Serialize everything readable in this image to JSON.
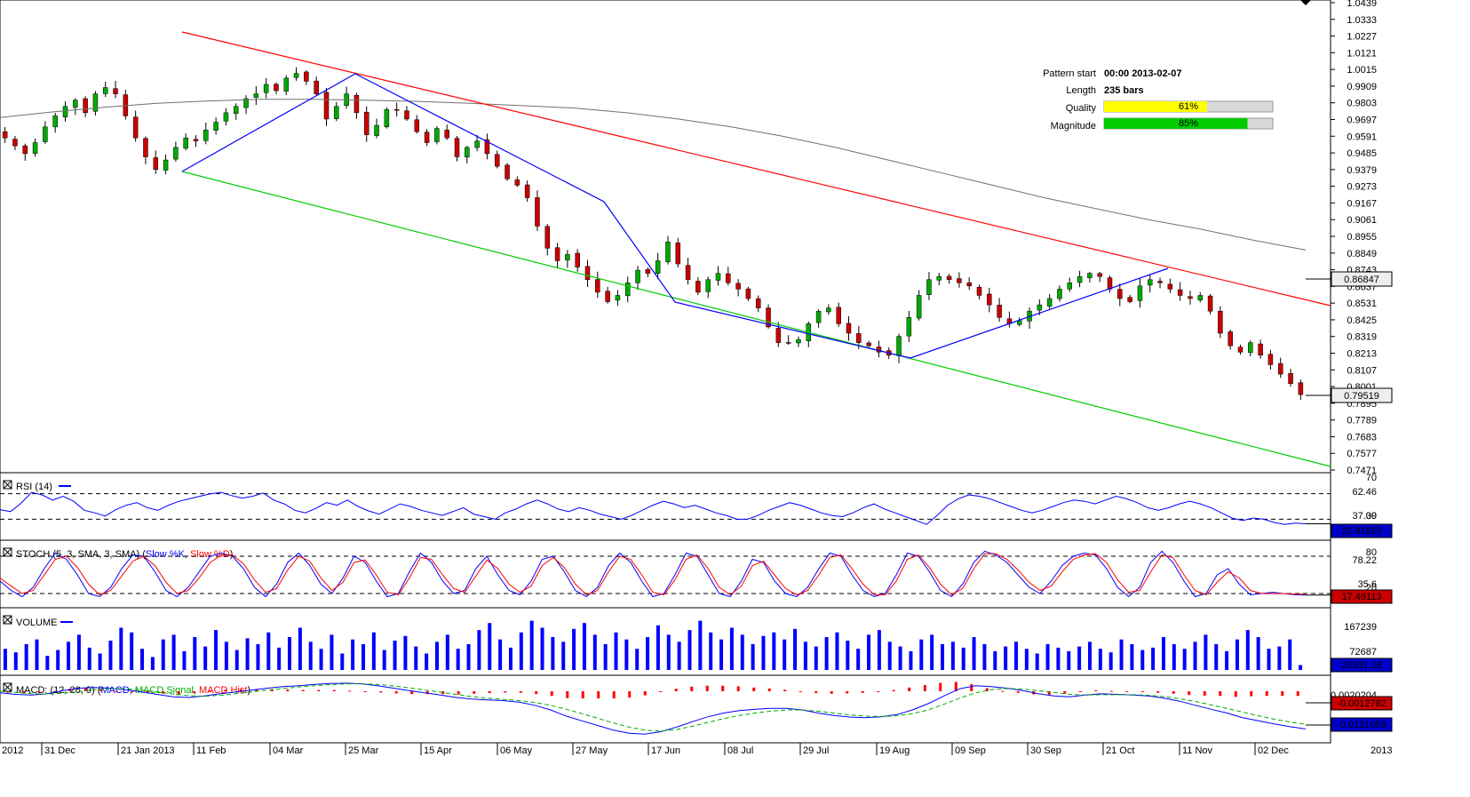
{
  "colors": {
    "bull_candle": "#00aa00",
    "bear_candle": "#cc0000",
    "candle_wick": "#000000",
    "sma_line": "#707070",
    "resistance": "#ff0000",
    "support": "#00cc00",
    "zigzag": "#0000ff",
    "rsi": "#0000ff",
    "stoch_k": "#0000ff",
    "stoch_d": "#ff0000",
    "volume": "#0000ff",
    "macd": "#0000ff",
    "macd_signal": "#00aa00",
    "macd_hist": "#ff0000",
    "quality_fill": "#ffff00",
    "magnitude_fill": "#00cc00"
  },
  "pattern_info": {
    "start_label": "Pattern start",
    "start_value": "00:00 2013-02-07",
    "length_label": "Length",
    "length_value": "235 bars",
    "quality_label": "Quality",
    "quality_value": "61%",
    "quality_pct": 61,
    "magnitude_label": "Magnitude",
    "magnitude_value": "85%",
    "magnitude_pct": 85
  },
  "chart_data": [
    {
      "type": "candlestick",
      "title": "",
      "ylim": [
        0.7471,
        1.0439
      ],
      "ytick_labels": [
        "1.0439",
        "1.0333",
        "1.0227",
        "1.0121",
        "1.0015",
        "0.9909",
        "0.9803",
        "0.9697",
        "0.9591",
        "0.9485",
        "0.9379",
        "0.9273",
        "0.9167",
        "0.9061",
        "0.8955",
        "0.8849",
        "0.8743",
        "0.8637",
        "0.8531",
        "0.8425",
        "0.8319",
        "0.8213",
        "0.8107",
        "0.8001",
        "0.7895",
        "0.7789",
        "0.7683",
        "0.7577",
        "0.7471"
      ],
      "x_labels": [
        "2012",
        "31 Dec",
        "21 Jan 2013",
        "11 Feb",
        "04 Mar",
        "25 Mar",
        "15 Apr",
        "06 May",
        "27 May",
        "17 Jun",
        "08 Jul",
        "29 Jul",
        "19 Aug",
        "09 Sep",
        "30 Sep",
        "21 Oct",
        "11 Nov",
        "02 Dec",
        "2013"
      ],
      "close_series": [
        0.958,
        0.953,
        0.948,
        0.955,
        0.965,
        0.972,
        0.978,
        0.982,
        0.974,
        0.986,
        0.99,
        0.986,
        0.972,
        0.958,
        0.946,
        0.938,
        0.944,
        0.952,
        0.958,
        0.956,
        0.963,
        0.968,
        0.974,
        0.978,
        0.983,
        0.986,
        0.992,
        0.988,
        0.996,
        0.999,
        0.994,
        0.986,
        0.97,
        0.978,
        0.986,
        0.974,
        0.96,
        0.966,
        0.976,
        0.976,
        0.97,
        0.962,
        0.955,
        0.964,
        0.958,
        0.946,
        0.952,
        0.956,
        0.948,
        0.94,
        0.932,
        0.928,
        0.92,
        0.902,
        0.888,
        0.88,
        0.884,
        0.876,
        0.868,
        0.86,
        0.854,
        0.858,
        0.866,
        0.874,
        0.872,
        0.88,
        0.892,
        0.878,
        0.868,
        0.86,
        0.868,
        0.872,
        0.866,
        0.862,
        0.856,
        0.85,
        0.838,
        0.828,
        0.828,
        0.83,
        0.84,
        0.848,
        0.85,
        0.84,
        0.834,
        0.828,
        0.826,
        0.822,
        0.82,
        0.832,
        0.844,
        0.858,
        0.868,
        0.87,
        0.868,
        0.866,
        0.864,
        0.858,
        0.852,
        0.844,
        0.84,
        0.842,
        0.848,
        0.852,
        0.856,
        0.862,
        0.866,
        0.87,
        0.872,
        0.87,
        0.862,
        0.856,
        0.854,
        0.864,
        0.868,
        0.866,
        0.862,
        0.858,
        0.856,
        0.858,
        0.848,
        0.834,
        0.826,
        0.822,
        0.828,
        0.82,
        0.814,
        0.808,
        0.802,
        0.795
      ],
      "series": [
        {
          "name": "",
          "values": [
            0.971,
            0.9745,
            0.9775,
            0.98,
            0.9815,
            0.9825,
            0.9825,
            0.982,
            0.9812,
            0.98,
            0.9785,
            0.977,
            0.974,
            0.97,
            0.965,
            0.959,
            0.952,
            0.944,
            0.936,
            0.928,
            0.92,
            0.913,
            0.906,
            0.9,
            0.893,
            0.8868
          ]
        }
      ],
      "annotations": [
        "0.86847",
        "0.79519"
      ]
    },
    {
      "type": "line",
      "title": "RSI (14)",
      "ylim": [
        0,
        100
      ],
      "ytick_labels": [
        "70",
        "62.46",
        "37.09",
        "30"
      ],
      "levels": [
        70,
        30
      ],
      "series": [
        {
          "name": "",
          "values": [
            45,
            42,
            55,
            72,
            68,
            60,
            66,
            58,
            44,
            40,
            35,
            45,
            52,
            56,
            48,
            44,
            52,
            58,
            62,
            66,
            70,
            72,
            67,
            63,
            66,
            71,
            60,
            54,
            44,
            40,
            47,
            56,
            52,
            60,
            50,
            43,
            38,
            46,
            54,
            50,
            44,
            40,
            36,
            42,
            48,
            38,
            34,
            30,
            40,
            46,
            54,
            60,
            54,
            46,
            42,
            48,
            44,
            38,
            34,
            30,
            36,
            44,
            52,
            58,
            54,
            48,
            52,
            46,
            40,
            36,
            30,
            30,
            36,
            44,
            50,
            56,
            52,
            46,
            40,
            36,
            34,
            40,
            48,
            54,
            46,
            40,
            34,
            28,
            22,
            36,
            52,
            62,
            68,
            66,
            62,
            56,
            50,
            44,
            40,
            44,
            50,
            56,
            60,
            58,
            54,
            60,
            66,
            62,
            56,
            48,
            44,
            48,
            54,
            58,
            54,
            48,
            40,
            32,
            28,
            32,
            30,
            25,
            22,
            24,
            22.9
          ]
        }
      ]
    },
    {
      "type": "line",
      "title": "STOCH (5, 3, SMA, 3, SMA)",
      "legend": [
        "Slow %K",
        "Slow %D"
      ],
      "ylim": [
        0,
        100
      ],
      "ytick_labels": [
        "80",
        "78.22",
        "35.6",
        "20"
      ],
      "levels": [
        80,
        20
      ],
      "series": [
        {
          "name": "Slow %K",
          "values": [
            40,
            25,
            15,
            30,
            60,
            85,
            75,
            50,
            20,
            15,
            30,
            60,
            82,
            80,
            55,
            25,
            15,
            30,
            55,
            80,
            85,
            80,
            60,
            30,
            15,
            35,
            70,
            85,
            65,
            35,
            20,
            45,
            80,
            70,
            40,
            15,
            20,
            55,
            85,
            70,
            40,
            20,
            25,
            60,
            80,
            50,
            25,
            18,
            40,
            75,
            80,
            55,
            25,
            15,
            30,
            65,
            85,
            70,
            40,
            15,
            20,
            50,
            85,
            80,
            50,
            20,
            15,
            40,
            75,
            70,
            40,
            20,
            15,
            30,
            60,
            85,
            80,
            50,
            25,
            15,
            20,
            50,
            85,
            80,
            55,
            25,
            15,
            35,
            70,
            88,
            82,
            70,
            50,
            30,
            20,
            40,
            65,
            80,
            85,
            82,
            60,
            30,
            15,
            30,
            70,
            88,
            70,
            40,
            15,
            20,
            50,
            60,
            35,
            18,
            20,
            22,
            20,
            18,
            17.5
          ]
        },
        {
          "name": "Slow %D",
          "values": [
            45,
            32,
            20,
            25,
            50,
            75,
            80,
            62,
            35,
            18,
            25,
            48,
            72,
            80,
            65,
            38,
            20,
            25,
            45,
            70,
            82,
            82,
            68,
            42,
            22,
            28,
            58,
            80,
            72,
            45,
            25,
            38,
            70,
            74,
            50,
            22,
            18,
            45,
            78,
            75,
            50,
            28,
            22,
            48,
            74,
            60,
            35,
            22,
            32,
            65,
            78,
            62,
            35,
            18,
            25,
            55,
            80,
            75,
            50,
            22,
            18,
            42,
            75,
            82,
            60,
            30,
            18,
            32,
            65,
            72,
            50,
            28,
            18,
            25,
            50,
            78,
            82,
            60,
            35,
            18,
            18,
            40,
            75,
            82,
            62,
            35,
            18,
            28,
            60,
            84,
            84,
            75,
            58,
            38,
            25,
            32,
            55,
            75,
            82,
            84,
            70,
            42,
            22,
            25,
            55,
            82,
            78,
            50,
            25,
            18,
            38,
            55,
            45,
            25,
            20,
            20,
            20,
            19,
            19
          ]
        }
      ]
    },
    {
      "type": "bar",
      "title": "VOLUME",
      "ylim": [
        0,
        250000
      ],
      "ytick_labels": [
        "167239",
        "72687"
      ],
      "series": [
        {
          "name": "",
          "values": [
            90000,
            75000,
            110000,
            130000,
            60000,
            85000,
            120000,
            150000,
            95000,
            70000,
            125000,
            180000,
            160000,
            90000,
            55000,
            130000,
            150000,
            80000,
            140000,
            100000,
            170000,
            120000,
            85000,
            135000,
            110000,
            160000,
            95000,
            140000,
            180000,
            120000,
            90000,
            150000,
            70000,
            130000,
            110000,
            160000,
            85000,
            125000,
            145000,
            100000,
            70000,
            120000,
            150000,
            90000,
            110000,
            170000,
            200000,
            130000,
            95000,
            160000,
            210000,
            180000,
            140000,
            120000,
            175000,
            200000,
            150000,
            110000,
            160000,
            130000,
            90000,
            140000,
            190000,
            150000,
            120000,
            170000,
            210000,
            160000,
            130000,
            180000,
            150000,
            110000,
            145000,
            160000,
            130000,
            175000,
            120000,
            100000,
            140000,
            160000,
            125000,
            90000,
            150000,
            170000,
            120000,
            100000,
            80000,
            130000,
            150000,
            110000,
            120000,
            95000,
            140000,
            110000,
            80000,
            100000,
            120000,
            90000,
            70000,
            110000,
            95000,
            80000,
            100000,
            120000,
            90000,
            75000,
            130000,
            110000,
            85000,
            95000,
            140000,
            110000,
            90000,
            120000,
            150000,
            110000,
            80000,
            130000,
            170000,
            140000,
            90000,
            100000,
            130000,
            20931
          ]
        }
      ]
    },
    {
      "type": "line",
      "title": "MACD: (12, 26, 9)",
      "legend": [
        "MACD",
        "MACD Signal",
        "MACD Hist"
      ],
      "ylim": [
        -0.016,
        0.004
      ],
      "ytick_labels": [
        "0.0020204"
      ],
      "series": [
        {
          "name": "MACD",
          "values": [
            -0.0005,
            -0.001,
            -0.0012,
            -0.0008,
            0.0002,
            0.001,
            0.0012,
            0.001,
            0.0005,
            -0.0002,
            -0.001,
            -0.0018,
            -0.002,
            -0.0015,
            -0.0008,
            -0.0002,
            0.0004,
            0.001,
            0.0015,
            0.0018,
            0.0022,
            0.0025,
            0.0026,
            0.0024,
            0.0018,
            0.001,
            0.0002,
            -0.0005,
            -0.0012,
            -0.002,
            -0.0025,
            -0.0028,
            -0.003,
            -0.0035,
            -0.0045,
            -0.006,
            -0.008,
            -0.0095,
            -0.011,
            -0.0125,
            -0.0135,
            -0.0138,
            -0.013,
            -0.0115,
            -0.0098,
            -0.0082,
            -0.007,
            -0.0062,
            -0.0058,
            -0.0055,
            -0.0055,
            -0.006,
            -0.007,
            -0.0078,
            -0.0083,
            -0.0085,
            -0.0082,
            -0.0075,
            -0.006,
            -0.004,
            -0.0015,
            0.0008,
            0.0018,
            0.0015,
            0.001,
            0.0002,
            -0.0008,
            -0.0015,
            -0.0018,
            -0.0012,
            -0.0008,
            -0.001,
            -0.0012,
            -0.0015,
            -0.0022,
            -0.0032,
            -0.0045,
            -0.0058,
            -0.007,
            -0.0085,
            -0.0095,
            -0.0105,
            -0.0114,
            -0.0121
          ]
        },
        {
          "name": "MACD Signal",
          "values": [
            0.0,
            -0.0004,
            -0.0008,
            -0.0009,
            -0.0006,
            -0.0001,
            0.0005,
            0.0009,
            0.0008,
            0.0004,
            -0.0002,
            -0.0009,
            -0.0014,
            -0.0016,
            -0.0013,
            -0.0008,
            -0.0002,
            0.0004,
            0.0009,
            0.0014,
            0.0018,
            0.0021,
            0.0024,
            0.0024,
            0.0022,
            0.0017,
            0.0011,
            0.0004,
            -0.0003,
            -0.001,
            -0.0017,
            -0.0022,
            -0.0026,
            -0.003,
            -0.0036,
            -0.0045,
            -0.0058,
            -0.0072,
            -0.0087,
            -0.0102,
            -0.0115,
            -0.0125,
            -0.0128,
            -0.0123,
            -0.0113,
            -0.01,
            -0.0088,
            -0.0078,
            -0.007,
            -0.0064,
            -0.006,
            -0.006,
            -0.0064,
            -0.007,
            -0.0076,
            -0.008,
            -0.0081,
            -0.0079,
            -0.0072,
            -0.006,
            -0.0042,
            -0.0022,
            -0.0005,
            0.0005,
            0.0009,
            0.0007,
            0.0002,
            -0.0004,
            -0.001,
            -0.0012,
            -0.0011,
            -0.0011,
            -0.0011,
            -0.0013,
            -0.0017,
            -0.0024,
            -0.0033,
            -0.0044,
            -0.0055,
            -0.0067,
            -0.0079,
            -0.009,
            -0.0099,
            -0.0106
          ]
        },
        {
          "name": "MACD Hist",
          "values": [
            -0.0005,
            -0.0006,
            -0.0004,
            0.0001,
            0.0008,
            0.0011,
            0.0007,
            0.0001,
            -0.0003,
            -0.0006,
            -0.0008,
            -0.0009,
            -0.0006,
            0.0001,
            0.0005,
            0.0006,
            0.0006,
            0.0006,
            0.0006,
            0.0004,
            0.0004,
            0.0004,
            0.0002,
            0.0,
            -0.0004,
            -0.0007,
            -0.0009,
            -0.0009,
            -0.0009,
            -0.001,
            -0.0008,
            -0.0006,
            -0.0004,
            -0.0005,
            -0.0009,
            -0.0015,
            -0.0022,
            -0.0023,
            -0.0023,
            -0.0023,
            -0.002,
            -0.0013,
            -0.0002,
            0.0008,
            0.0015,
            0.0018,
            0.0018,
            0.0016,
            0.0012,
            0.0009,
            0.0005,
            0.0,
            -0.0006,
            -0.0008,
            -0.0007,
            -0.0005,
            -0.0001,
            0.0004,
            0.0012,
            0.002,
            0.0027,
            0.003,
            0.0023,
            0.001,
            0.0001,
            -0.0005,
            -0.001,
            -0.0011,
            -0.0008,
            0.0,
            0.0003,
            0.0001,
            -0.0001,
            -0.0002,
            -0.0005,
            -0.0008,
            -0.0012,
            -0.0014,
            -0.0015,
            -0.0018,
            -0.0016,
            -0.0015,
            -0.0015,
            -0.0015
          ]
        }
      ],
      "annotations": [
        "-0.0012782",
        "-0.0121059"
      ]
    }
  ]
}
